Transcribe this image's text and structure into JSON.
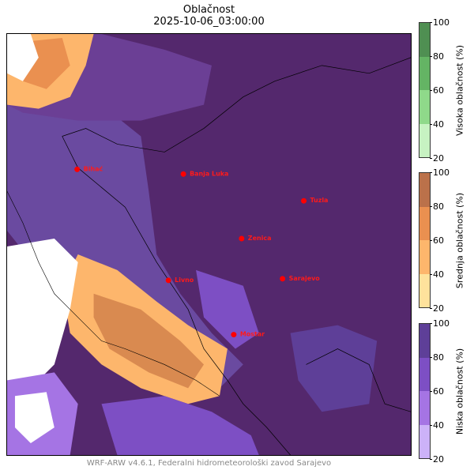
{
  "title": "Oblačnost",
  "datetime": "2025-10-06_03:00:00",
  "cities": [
    {
      "name": "Bihać"
    },
    {
      "name": "Banja Luka"
    },
    {
      "name": "Tuzla"
    },
    {
      "name": "Zenica"
    },
    {
      "name": "Livno"
    },
    {
      "name": "Sarajevo"
    },
    {
      "name": "Mostar"
    }
  ],
  "colorbars": [
    {
      "label": "Visoka oblačnost (%)",
      "ticks": [
        "100",
        "80",
        "60",
        "40",
        "20"
      ],
      "colors": [
        "#4f8f52",
        "#64b464",
        "#8fd98a",
        "#c7f2c2"
      ]
    },
    {
      "label": "Srednja oblačnost (%)",
      "ticks": [
        "100",
        "80",
        "60",
        "40",
        "20"
      ],
      "colors": [
        "#bb714a",
        "#ea9050",
        "#fdb66c",
        "#fee29c"
      ]
    },
    {
      "label": "Niska oblačnost (%)",
      "ticks": [
        "100",
        "80",
        "60",
        "40",
        "20"
      ],
      "colors": [
        "#5e3f98",
        "#7d4fc4",
        "#a574e4",
        "#ccb2f8"
      ]
    }
  ],
  "footer": "WRF-ARW v4.6.1, Federalni hidrometeorološki zavod Sarajevo",
  "colors": {
    "city_marker": "#ff0000",
    "dense_low_cloud": "#54286d"
  }
}
